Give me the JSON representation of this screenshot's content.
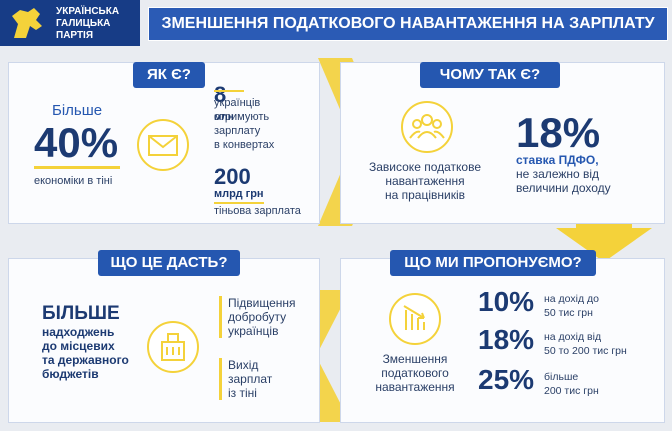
{
  "header": {
    "party": "УКРАЇНСЬКА\nГАЛИЦЬКА\nПАРТІЯ",
    "title": "ЗМЕНШЕННЯ ПОДАТКОВОГО НАВАНТАЖЕННЯ НА ЗАРПЛАТУ"
  },
  "how": {
    "heading": "ЯК Є?",
    "more": "Більше",
    "share": "40%",
    "share_text": "економіки в тіні",
    "workers_number": "8",
    "workers_unit": "млн",
    "workers_text": "українців\nотримують\nзарплату\nв конвертах",
    "shadow_number": "200",
    "shadow_unit": "млрд грн",
    "shadow_text": "тіньова зарплата"
  },
  "why": {
    "heading": "ЧОМУ ТАК Є?",
    "text": "Зависоке податкове\nнавантаження\nна працівників",
    "rate": "18%",
    "rate_name": "ставка ПДФО,",
    "rate_text": "не залежно від\nвеличини доходу"
  },
  "result": {
    "heading": "ЩО ЦЕ ДАСТЬ?",
    "more": "БІЛЬШЕ",
    "text": "надходжень\nдо місцевих\nта державного\nбюджетів",
    "items": [
      "Підвищення\nдобробуту\nукраїнців",
      "Вихід\nзарплат\nіз тіні"
    ]
  },
  "proposal": {
    "heading": "ЩО МИ ПРОПОНУЄМО?",
    "text": "Зменшення\nподаткового\nнавантаження",
    "rates": [
      {
        "rate": "10%",
        "text": "на дохід до\n50 тис грн"
      },
      {
        "rate": "18%",
        "text": "на дохід від\n50 то 200 тис грн"
      },
      {
        "rate": "25%",
        "text": "більше\n200 тис грн"
      }
    ]
  }
}
